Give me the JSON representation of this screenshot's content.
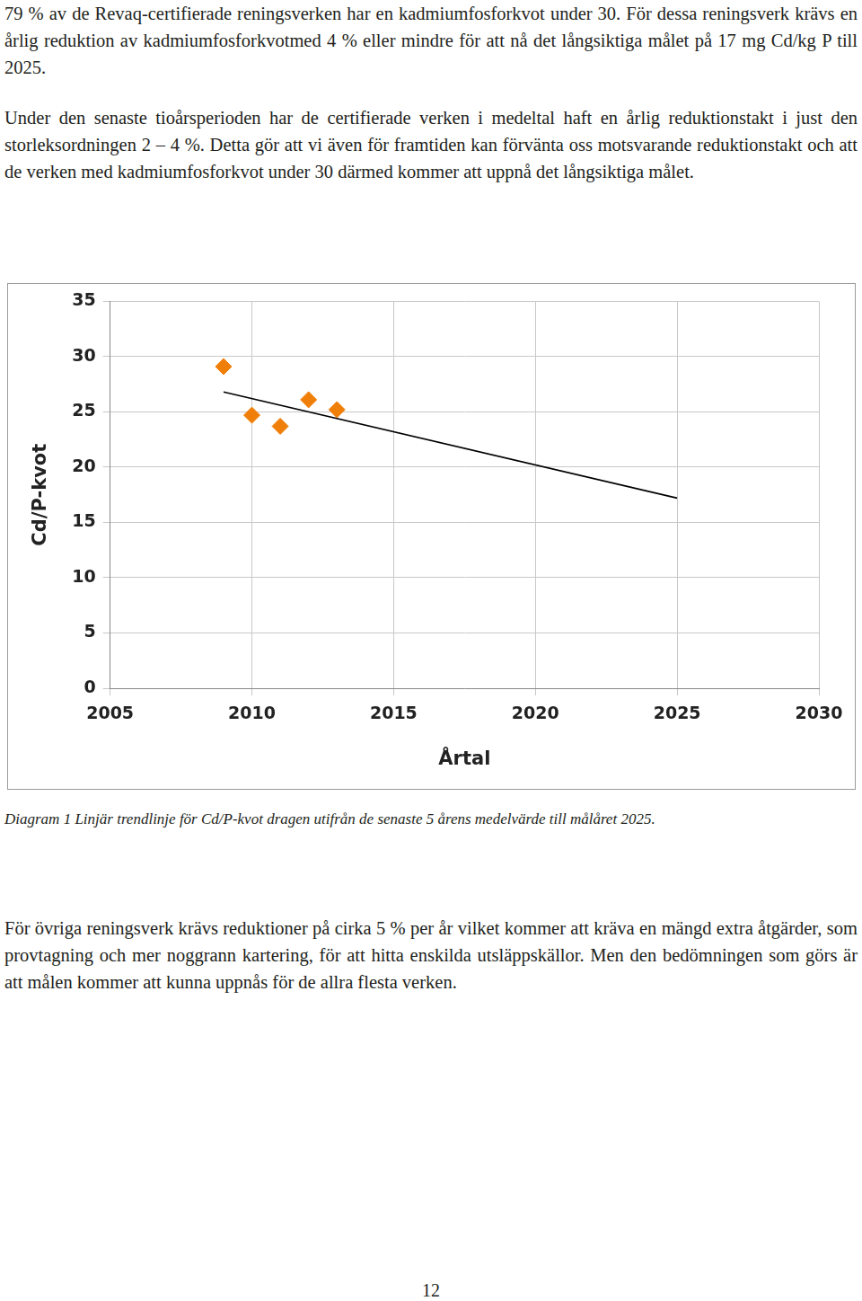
{
  "paragraphs": [
    "79 % av de Revaq-certifierade reningsverken har en kadmiumfosforkvot under 30. För dessa reningsverk krävs en årlig reduktion av kadmiumfosforkvotmed 4 % eller mindre för att nå det långsiktiga målet på 17 mg Cd/kg P till 2025.",
    "Under den senaste tioårsperioden har de certifierade verken i medeltal haft en årlig reduktionstakt i just den storleksordningen 2 – 4 %. Detta gör att vi även för framtiden kan förvänta oss motsvarande reduktionstakt och att de verken med kadmiumfosforkvot under 30 därmed kommer att uppnå det långsiktiga målet.",
    "För övriga reningsverk krävs reduktioner på cirka 5 % per år vilket kommer att kräva en mängd extra åtgärder, som provtagning och mer noggrann kartering, för att hitta enskilda utsläppskällor. Men den bedömningen som görs är att målen kommer att kunna uppnås för de allra flesta verken."
  ],
  "chart_data": {
    "type": "scatter",
    "x_label": "Årtal",
    "y_label": "Cd/P-kvot",
    "series": [
      {
        "type": "scatter",
        "color": "#f07f09",
        "marker": "diamond",
        "x": [
          2009,
          2010,
          2011,
          2012,
          2013
        ],
        "values": [
          29.1,
          24.7,
          23.7,
          26.1,
          25.2
        ]
      },
      {
        "type": "line",
        "color": "#000000",
        "line_style": "solid",
        "x": [
          2009,
          2025
        ],
        "values": [
          26.8,
          17.2
        ]
      }
    ],
    "xlim": [
      2005,
      2030
    ],
    "xticks": [
      2005,
      2010,
      2015,
      2020,
      2025,
      2030
    ],
    "ylim": [
      0,
      35
    ],
    "yticks": [
      0,
      5,
      10,
      15,
      20,
      25,
      30,
      35
    ],
    "grid": true
  },
  "caption": "Diagram 1 Linjär trendlinje för Cd/P-kvot dragen utifrån de senaste 5 årens medelvärde till målåret 2025.",
  "page_number": 12
}
